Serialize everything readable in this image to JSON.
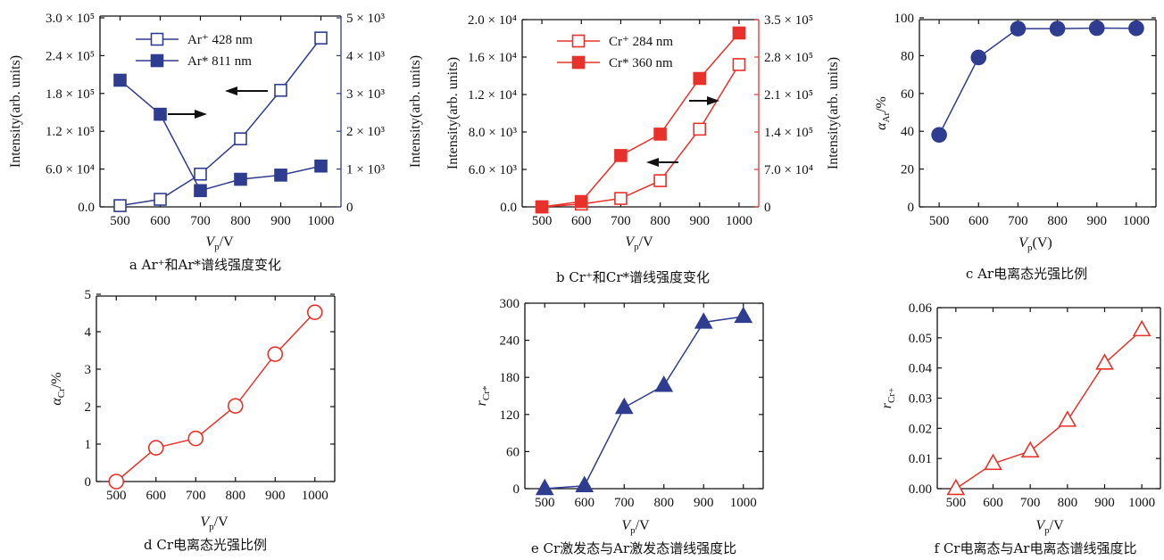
{
  "colors": {
    "blue": "#2e3d8f",
    "red": "#e8312a",
    "black": "#111111"
  },
  "chart_data": [
    {
      "id": "a",
      "type": "line",
      "caption": "a  Ar⁺和Ar*谱线强度变化",
      "x": [
        500,
        600,
        700,
        800,
        900,
        1000
      ],
      "xticks": [
        "500",
        "600",
        "700",
        "800",
        "900",
        "1000"
      ],
      "xlabel": "V",
      "xlabel_sub": "p",
      "xlabel_unit": "/V",
      "ylabel": "Intensity(arb. units)",
      "ylabel_right": "Intensity(arb. units)",
      "ylim": [
        0,
        300000
      ],
      "yticks": [
        "0.0",
        "6.0 × 10⁴",
        "1.2 × 10⁵",
        "1.8 × 10⁵",
        "2.4 × 10⁵",
        "3.0 × 10⁵"
      ],
      "ylim_right": [
        0,
        5000
      ],
      "yticks_right": [
        "0",
        "1 × 10³",
        "2 × 10³",
        "3 × 10³",
        "4 × 10³",
        "5 × 10³"
      ],
      "series": [
        {
          "name": "Ar⁺ 428 nm",
          "axis": "left",
          "marker": "square-open",
          "color": "blue",
          "values": [
            2000,
            12000,
            52000,
            108000,
            185000,
            268000
          ]
        },
        {
          "name": "Ar* 811 nm",
          "axis": "right",
          "marker": "square-filled",
          "color": "blue",
          "values": [
            3350,
            2450,
            430,
            730,
            840,
            1080
          ]
        }
      ]
    },
    {
      "id": "b",
      "type": "line",
      "caption": "b  Cr⁺和Cr*谱线强度变化",
      "x": [
        500,
        600,
        700,
        800,
        900,
        1000
      ],
      "xticks": [
        "500",
        "600",
        "700",
        "800",
        "900",
        "1000"
      ],
      "xlabel": "V",
      "xlabel_sub": "p",
      "xlabel_unit": "/V",
      "ylabel": "Intensity(arb. units)",
      "ylabel_right": "Intensity(arb. units)",
      "ylim": [
        0,
        20000
      ],
      "yticks": [
        "0.0",
        "6.0 × 10³",
        "8.0 × 10³",
        "1.2 × 10⁴",
        "1.6 × 10⁴",
        "2.0 × 10⁴"
      ],
      "ylim_right": [
        0,
        350000
      ],
      "yticks_right": [
        "0",
        "7.0 × 10⁴",
        "1.4 × 10⁵",
        "2.1 × 10⁵",
        "2.8 × 10⁵",
        "3.5 × 10⁵"
      ],
      "series": [
        {
          "name": "Cr⁺ 284 nm",
          "axis": "left",
          "marker": "square-open",
          "color": "red",
          "values": [
            0,
            300,
            900,
            2800,
            8300,
            15200
          ]
        },
        {
          "name": "Cr* 360 nm",
          "axis": "right",
          "marker": "square-filled",
          "color": "red",
          "values": [
            0,
            10000,
            96000,
            136000,
            240000,
            325000
          ]
        }
      ]
    },
    {
      "id": "c",
      "type": "line",
      "caption": "c  Ar电离态光强比例",
      "x": [
        500,
        600,
        700,
        800,
        900,
        1000
      ],
      "xticks": [
        "500",
        "600",
        "700",
        "800",
        "900",
        "1000"
      ],
      "xlabel": "V",
      "xlabel_sub": "p",
      "xlabel_unit": "(V)",
      "ylabel": "α",
      "ylabel_sub": "Ar",
      "ylabel_unit": "/%",
      "ylim": [
        0,
        105
      ],
      "yticks": [
        "0",
        "20",
        "40",
        "60",
        "80",
        "100"
      ],
      "series": [
        {
          "marker": "circle-filled",
          "color": "blue",
          "values": [
            40,
            83,
            99,
            99,
            99.3,
            99.2
          ]
        }
      ]
    },
    {
      "id": "d",
      "type": "line",
      "caption": "d  Cr电离态光强比例",
      "x": [
        500,
        600,
        700,
        800,
        900,
        1000
      ],
      "xticks": [
        "500",
        "600",
        "700",
        "800",
        "900",
        "1000"
      ],
      "xlabel": "V",
      "xlabel_sub": "p",
      "xlabel_unit": "/V",
      "ylabel": "α",
      "ylabel_sub": "Cr",
      "ylabel_unit": "/%",
      "ylim": [
        0,
        5
      ],
      "yticks": [
        "0",
        "1",
        "2",
        "3",
        "4",
        "5"
      ],
      "series": [
        {
          "marker": "circle-open",
          "color": "red",
          "values": [
            0,
            0.9,
            1.15,
            2.02,
            3.4,
            4.52
          ]
        }
      ]
    },
    {
      "id": "e",
      "type": "line",
      "caption": "e  Cr激发态与Ar激发态谱线强度比",
      "x": [
        500,
        600,
        700,
        800,
        900,
        1000
      ],
      "xticks": [
        "500",
        "600",
        "700",
        "800",
        "900",
        "1000"
      ],
      "xlabel": "V",
      "xlabel_sub": "p",
      "xlabel_unit": "/V",
      "ylabel": "r",
      "ylabel_sub": "Cr*",
      "ylim": [
        0,
        320
      ],
      "yticks": [
        "0",
        "60",
        "120",
        "180",
        "240",
        "300"
      ],
      "series": [
        {
          "marker": "triangle-filled",
          "color": "blue",
          "values": [
            0,
            5,
            140,
            178,
            287,
            297
          ]
        }
      ]
    },
    {
      "id": "f",
      "type": "line",
      "caption": "f Cr电离态与Ar电离态谱线强度比",
      "x": [
        500,
        600,
        700,
        800,
        900,
        1000
      ],
      "xticks": [
        "500",
        "600",
        "700",
        "800",
        "900",
        "1000"
      ],
      "xlabel": "V",
      "xlabel_sub": "p",
      "xlabel_unit": "/V",
      "ylabel": "r",
      "ylabel_sub": "Cr+",
      "ylim": [
        0,
        0.065
      ],
      "yticks": [
        "0.00",
        "0.01",
        "0.02",
        "0.03",
        "0.04",
        "0.05",
        "0.06"
      ],
      "series": [
        {
          "marker": "triangle-open",
          "color": "red",
          "values": [
            0,
            0.009,
            0.0135,
            0.0245,
            0.045,
            0.057
          ]
        }
      ]
    }
  ]
}
